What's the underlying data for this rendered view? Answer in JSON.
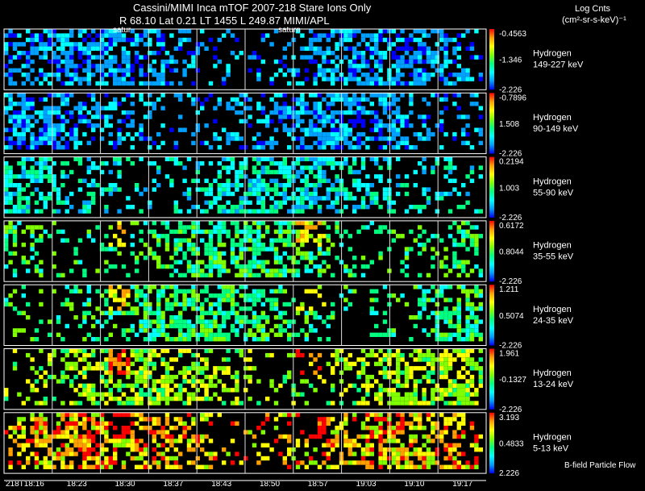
{
  "header": {
    "line1": "Cassini/MIMI Inca mTOF  2007-218   Stare   Ions Only",
    "line2": "R        68.10 Lat 0.21 LT 1455 L        249.87  MIMI/APL",
    "units_title": "Log Cnts",
    "units": "(cm²-sr-s-keV)⁻¹"
  },
  "labels": {
    "saturn_a": "satur",
    "saturn_b": "saturn",
    "footer_note": "B-field Particle Flow"
  },
  "chart_data": {
    "type": "heatmap",
    "columns": 10,
    "x_tick_labels": [
      "218T18:16",
      "18:23",
      "18:30",
      "18:37",
      "18:43",
      "18:50",
      "18:57",
      "19:03",
      "19:10",
      "19:17"
    ],
    "species": "Hydrogen",
    "panels": [
      {
        "species": "Hydrogen",
        "energy": "149-227 keV",
        "cmax": "-0.4563",
        "cmid": "-1.346",
        "cmin": "-2.226",
        "color_scale": "low"
      },
      {
        "species": "Hydrogen",
        "energy": "90-149 keV",
        "cmax": "-0.7896",
        "cmid": "1.508",
        "cmin": "-2.226",
        "color_scale": "low"
      },
      {
        "species": "Hydrogen",
        "energy": "55-90 keV",
        "cmax": "0.2194",
        "cmid": "1.003",
        "cmin": "-2.226",
        "color_scale": "mid-low"
      },
      {
        "species": "Hydrogen",
        "energy": "35-55 keV",
        "cmax": "0.6172",
        "cmid": "0.8044",
        "cmin": "-2.226",
        "color_scale": "mid"
      },
      {
        "species": "Hydrogen",
        "energy": "24-35 keV",
        "cmax": "1.211",
        "cmid": "0.5074",
        "cmin": "-2.226",
        "color_scale": "mid"
      },
      {
        "species": "Hydrogen",
        "energy": "13-24 keV",
        "cmax": "1.961",
        "cmid": "-0.1327",
        "cmin": "-2.226",
        "color_scale": "mid-high"
      },
      {
        "species": "Hydrogen",
        "energy": "5-13 keV",
        "cmax": "3.193",
        "cmid": "0.4833",
        "cmin": "2.226",
        "color_scale": "high"
      }
    ]
  },
  "colors": {
    "background": "#000000",
    "grid": "#ffffff",
    "colorbar": [
      "#0000ff",
      "#00a0ff",
      "#00ffff",
      "#00ff80",
      "#80ff00",
      "#ffff00",
      "#ffa000",
      "#ff0000"
    ]
  }
}
